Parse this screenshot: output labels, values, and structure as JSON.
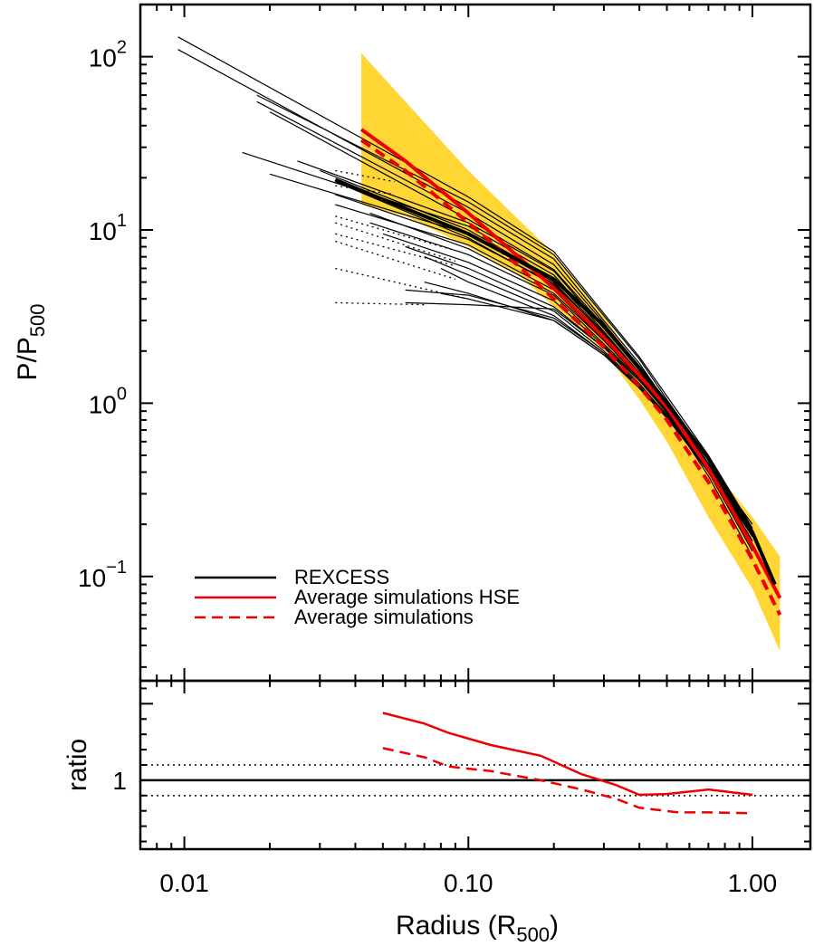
{
  "chart_data": [
    {
      "panel": "main",
      "type": "line",
      "x_scale": "log",
      "y_scale": "log",
      "xlim": [
        0.007,
        1.6
      ],
      "ylim": [
        0.025,
        200
      ],
      "ylabel": "P/P",
      "ylabel_sub": "500",
      "yticks": [
        {
          "value": 100,
          "base": "10",
          "exp": "2"
        },
        {
          "value": 10,
          "base": "10",
          "exp": "1"
        },
        {
          "value": 1,
          "base": "10",
          "exp": "0"
        },
        {
          "value": 0.1,
          "base": "10",
          "exp": "−1"
        }
      ],
      "legend": {
        "placement": "bottom-left",
        "entries": [
          {
            "label": "REXCESS",
            "color": "#000000",
            "style": "solid"
          },
          {
            "label": "Average simulations  HSE",
            "color": "#ee0000",
            "style": "solid"
          },
          {
            "label": "Average simulations",
            "color": "#ee0000",
            "style": "dashed"
          }
        ]
      },
      "band": {
        "color": "#ffd633",
        "x": [
          0.042,
          0.06,
          0.1,
          0.15,
          0.2,
          0.3,
          0.4,
          0.5,
          0.7,
          1.0,
          1.25
        ],
        "upper": [
          105,
          55,
          22,
          11.5,
          7.3,
          3.2,
          1.6,
          0.95,
          0.45,
          0.22,
          0.13
        ],
        "lower": [
          14,
          12,
          8,
          5.5,
          3.6,
          2.0,
          1.05,
          0.6,
          0.22,
          0.085,
          0.037
        ]
      },
      "series": [
        {
          "name": "Average simulations  HSE",
          "color": "#ee0000",
          "style": "solid",
          "width": 4,
          "x": [
            0.042,
            0.06,
            0.1,
            0.15,
            0.2,
            0.3,
            0.4,
            0.5,
            0.7,
            1.0,
            1.25
          ],
          "y": [
            38,
            25,
            12.5,
            7.0,
            4.6,
            2.4,
            1.45,
            0.95,
            0.42,
            0.15,
            0.075
          ]
        },
        {
          "name": "Average simulations",
          "color": "#ee0000",
          "style": "dashed",
          "width": 4,
          "x": [
            0.042,
            0.06,
            0.1,
            0.15,
            0.2,
            0.3,
            0.4,
            0.5,
            0.7,
            1.0,
            1.25
          ],
          "y": [
            33,
            22,
            11,
            6.2,
            4.0,
            2.1,
            1.25,
            0.8,
            0.35,
            0.125,
            0.06
          ]
        },
        {
          "name": "REXCESS",
          "color": "#000000",
          "style": "solid",
          "width": 4,
          "x": [
            0.034,
            0.05,
            0.1,
            0.2,
            0.3,
            0.4,
            0.5,
            0.7,
            1.0,
            1.2
          ],
          "y": [
            19.5,
            15,
            9.5,
            5.2,
            2.8,
            1.6,
            1.0,
            0.48,
            0.18,
            0.09
          ]
        }
      ],
      "profiles": {
        "color": "#000000",
        "shared_x": [
          0.1,
          0.2,
          0.3,
          0.4,
          0.5,
          0.7,
          1.0
        ],
        "solid": [
          {
            "x0": 0.0095,
            "y0": 130,
            "y": [
              15.5,
              7.5,
              3.3,
              1.85,
              1.1,
              0.5,
              0.19
            ]
          },
          {
            "x0": 0.0095,
            "y0": 110,
            "y": [
              13.5,
              6.8,
              3.0,
              1.7,
              1.0,
              0.45,
              0.17
            ]
          },
          {
            "x0": 0.018,
            "y0": 60,
            "y": [
              14.5,
              7.2,
              3.2,
              1.8,
              1.05,
              0.48,
              0.18
            ]
          },
          {
            "x0": 0.018,
            "y0": 55,
            "y": [
              12.5,
              6.3,
              2.9,
              1.6,
              0.95,
              0.43,
              0.16
            ]
          },
          {
            "x0": 0.02,
            "y0": 48,
            "y": [
              11.5,
              5.9,
              2.8,
              1.55,
              0.92,
              0.4,
              0.15
            ]
          },
          {
            "x0": 0.016,
            "y0": 28,
            "y": [
              10.5,
              5.5,
              2.6,
              1.5,
              0.9,
              0.4,
              0.14
            ]
          },
          {
            "x0": 0.02,
            "y0": 21,
            "y": [
              9.5,
              5.0,
              2.5,
              1.45,
              0.88,
              0.38,
              0.13
            ]
          },
          {
            "x0": 0.025,
            "y0": 25,
            "y": [
              11.0,
              5.8,
              2.7,
              1.55,
              0.95,
              0.44,
              0.17
            ]
          },
          {
            "x0": 0.03,
            "y0": 22,
            "y": [
              10.0,
              5.2,
              2.55,
              1.5,
              0.93,
              0.42,
              0.16
            ]
          },
          {
            "x0": 0.034,
            "y0": 19,
            "y": [
              9.0,
              4.8,
              2.4,
              1.45,
              0.92,
              0.43,
              0.17
            ]
          },
          {
            "x0": 0.034,
            "y0": 16,
            "y": [
              8.8,
              4.9,
              2.5,
              1.5,
              0.95,
              0.45,
              0.19
            ]
          },
          {
            "x0": 0.034,
            "y0": 14,
            "y": [
              8.2,
              4.5,
              2.3,
              1.4,
              0.9,
              0.42,
              0.17
            ]
          },
          {
            "x0": 0.045,
            "y0": 12.5,
            "y": [
              7.8,
              4.3,
              2.3,
              1.4,
              0.92,
              0.44,
              0.18
            ]
          },
          {
            "x0": 0.045,
            "y0": 11,
            "y": [
              7.2,
              4.2,
              2.2,
              1.38,
              0.9,
              0.43,
              0.17
            ]
          },
          {
            "x0": 0.05,
            "y0": 9.5,
            "y": [
              6.5,
              3.9,
              2.15,
              1.35,
              0.88,
              0.42,
              0.16
            ]
          },
          {
            "x0": 0.06,
            "y0": 8,
            "y": [
              6.0,
              3.6,
              2.1,
              1.3,
              0.85,
              0.41,
              0.16
            ]
          },
          {
            "x0": 0.07,
            "y0": 7,
            "y": [
              5.5,
              3.4,
              2.0,
              1.28,
              0.86,
              0.43,
              0.18
            ]
          },
          {
            "x0": 0.08,
            "y0": 6,
            "y": [
              5.0,
              3.2,
              1.95,
              1.25,
              0.84,
              0.42,
              0.18
            ]
          },
          {
            "x0": 0.07,
            "y0": 5,
            "y": [
              4.3,
              3.0,
              1.9,
              1.22,
              0.82,
              0.41,
              0.17
            ]
          },
          {
            "x0": 0.08,
            "y0": 4.3,
            "y": [
              4.0,
              3.0,
              1.9,
              1.24,
              0.85,
              0.44,
              0.2
            ]
          },
          {
            "x0": 0.06,
            "y0": 3.8,
            "y": [
              3.7,
              3.5,
              2.1,
              1.35,
              0.9,
              0.45,
              0.19
            ]
          },
          {
            "x0": 0.06,
            "y0": 4.5,
            "y": [
              4.2,
              3.1,
              1.95,
              1.25,
              0.83,
              0.4,
              0.16
            ]
          }
        ],
        "dotted": [
          {
            "x": [
              0.034,
              0.09
            ],
            "y": [
              12,
              7.6
            ]
          },
          {
            "x": [
              0.034,
              0.09
            ],
            "y": [
              11,
              6.6
            ]
          },
          {
            "x": [
              0.034,
              0.09
            ],
            "y": [
              9.5,
              6.2
            ]
          },
          {
            "x": [
              0.034,
              0.09
            ],
            "y": [
              8.6,
              5.2
            ]
          },
          {
            "x": [
              0.034,
              0.1
            ],
            "y": [
              6.0,
              4.0
            ]
          },
          {
            "x": [
              0.034,
              0.07
            ],
            "y": [
              3.8,
              3.7
            ]
          },
          {
            "x": [
              0.034,
              0.055
            ],
            "y": [
              22,
              19
            ]
          },
          {
            "x": [
              0.034,
              0.055
            ],
            "y": [
              18,
              16
            ]
          }
        ]
      }
    },
    {
      "panel": "ratio",
      "type": "line",
      "x_scale": "log",
      "y_scale": "linear",
      "xlim": [
        0.007,
        1.6
      ],
      "ylim": [
        0.55,
        1.65
      ],
      "xlabel": "Radius (R",
      "xlabel_sub": "500",
      "xlabel_close": ")",
      "ylabel": "ratio",
      "xticks": [
        {
          "value": 0.01,
          "label": "0.01"
        },
        {
          "value": 0.1,
          "label": "0.10"
        },
        {
          "value": 1.0,
          "label": "1.00"
        }
      ],
      "yticks": [
        {
          "value": 1,
          "label": "1"
        }
      ],
      "reference_lines": [
        {
          "y": 1.0,
          "style": "solid"
        },
        {
          "y": 1.1,
          "style": "dotted"
        },
        {
          "y": 0.9,
          "style": "dotted"
        }
      ],
      "series": [
        {
          "name": "Average simulations  HSE",
          "color": "#ee0000",
          "style": "solid",
          "x": [
            0.05,
            0.07,
            0.085,
            0.12,
            0.18,
            0.25,
            0.33,
            0.4,
            0.5,
            0.7,
            1.0
          ],
          "y": [
            1.44,
            1.37,
            1.31,
            1.23,
            1.16,
            1.04,
            0.97,
            0.905,
            0.91,
            0.94,
            0.905
          ]
        },
        {
          "name": "Average simulations",
          "color": "#ee0000",
          "style": "dashed",
          "x": [
            0.05,
            0.07,
            0.085,
            0.12,
            0.18,
            0.25,
            0.33,
            0.4,
            0.55,
            0.7,
            1.0
          ],
          "y": [
            1.21,
            1.15,
            1.09,
            1.06,
            1.0,
            0.94,
            0.88,
            0.82,
            0.79,
            0.79,
            0.785
          ]
        }
      ]
    }
  ]
}
